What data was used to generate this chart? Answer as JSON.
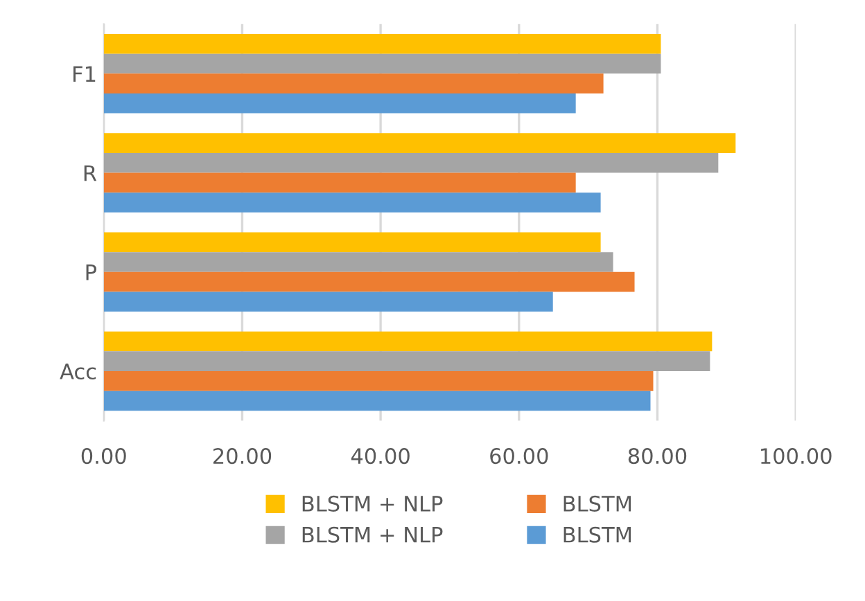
{
  "chart_data": {
    "type": "bar",
    "orientation": "horizontal",
    "categories": [
      "F1",
      "R",
      "P",
      "Acc"
    ],
    "series": [
      {
        "name": "BLSTM + NLP",
        "color": "#ffc000",
        "values": [
          80.5,
          91.3,
          71.8,
          87.9
        ]
      },
      {
        "name": "BLSTM + NLP",
        "color": "#a5a5a5",
        "values": [
          80.5,
          88.8,
          73.6,
          87.6
        ]
      },
      {
        "name": "BLSTM",
        "color": "#ed7d31",
        "values": [
          72.2,
          68.2,
          76.7,
          79.4
        ]
      },
      {
        "name": "BLSTM",
        "color": "#5b9bd5",
        "values": [
          68.2,
          71.8,
          64.9,
          79.0
        ]
      }
    ],
    "xlim": [
      0,
      100
    ],
    "xticks": [
      {
        "value": 0,
        "label": "0.00"
      },
      {
        "value": 20,
        "label": "20.00"
      },
      {
        "value": 40,
        "label": "40.00"
      },
      {
        "value": 60,
        "label": "60.00"
      },
      {
        "value": 80,
        "label": "80.00"
      },
      {
        "value": 100,
        "label": "100.00"
      }
    ],
    "grid": "x",
    "legend": "bottom"
  }
}
